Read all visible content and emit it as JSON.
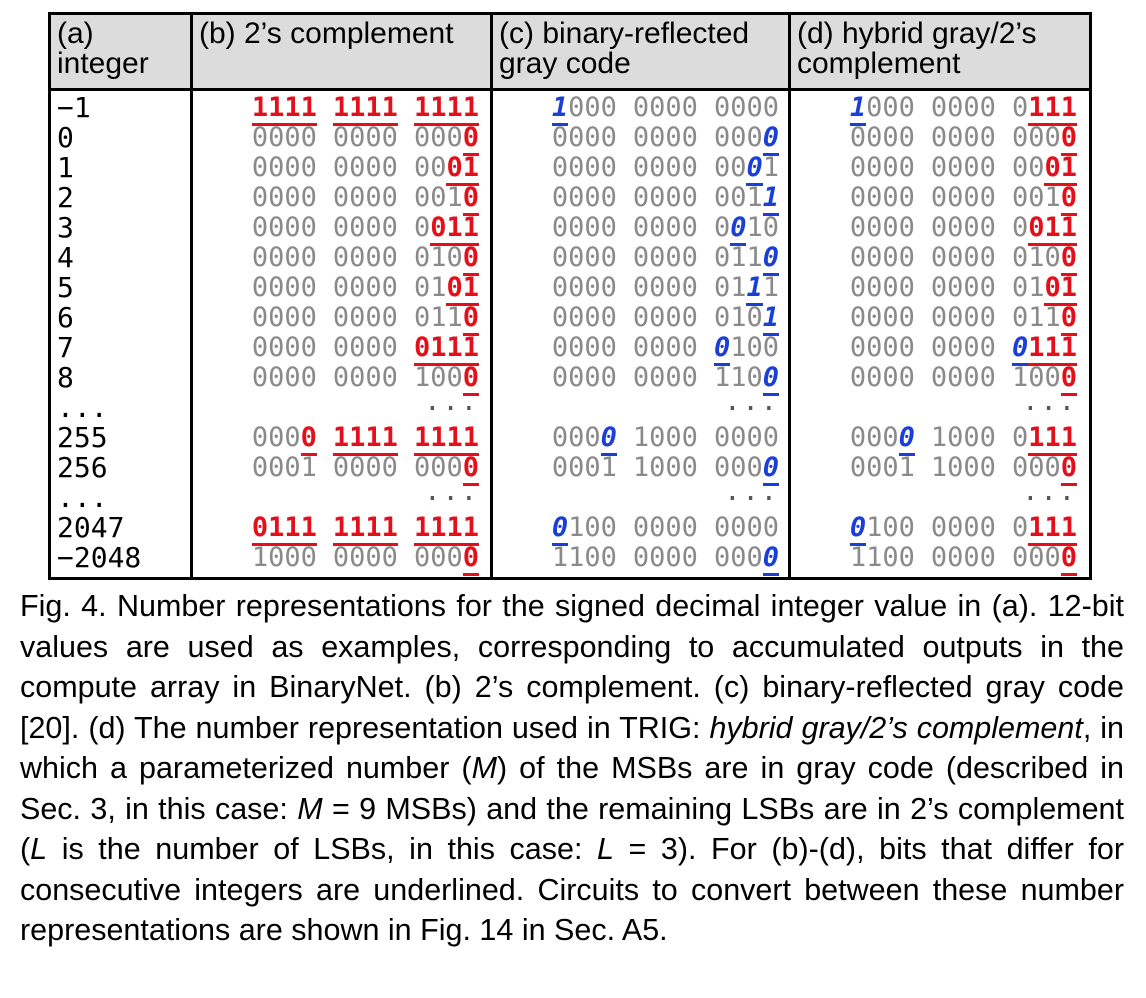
{
  "table": {
    "headers": [
      {
        "label": "(a)\ninteger"
      },
      {
        "label": "(b) 2’s complement"
      },
      {
        "label": "(c) binary-reflected\ngray code"
      },
      {
        "label": "(d) hybrid gray/2’s\ncomplement"
      }
    ],
    "rows": [
      {
        "int": "−1",
        "b": "1111 1111 1111",
        "b_mark": "111111111111",
        "c": "1000 0000 0000",
        "c_mark": "100000000000",
        "d": "1000 0000 0111",
        "d_mark": "100000000111"
      },
      {
        "int": "0",
        "b": "0000 0000 0000",
        "b_mark": "000000000001",
        "c": "0000 0000 0000",
        "c_mark": "000000000001",
        "d": "0000 0000 0000",
        "d_mark": "000000000001"
      },
      {
        "int": "1",
        "b": "0000 0000 0001",
        "b_mark": "000000000011",
        "c": "0000 0000 0001",
        "c_mark": "000000000010",
        "d": "0000 0000 0001",
        "d_mark": "000000000011"
      },
      {
        "int": "2",
        "b": "0000 0000 0010",
        "b_mark": "000000000001",
        "c": "0000 0000 0011",
        "c_mark": "000000000001",
        "d": "0000 0000 0010",
        "d_mark": "000000000001"
      },
      {
        "int": "3",
        "b": "0000 0000 0011",
        "b_mark": "000000000111",
        "c": "0000 0000 0010",
        "c_mark": "000000000100",
        "d": "0000 0000 0011",
        "d_mark": "000000000111"
      },
      {
        "int": "4",
        "b": "0000 0000 0100",
        "b_mark": "000000000001",
        "c": "0000 0000 0110",
        "c_mark": "000000000001",
        "d": "0000 0000 0100",
        "d_mark": "000000000001"
      },
      {
        "int": "5",
        "b": "0000 0000 0101",
        "b_mark": "000000000011",
        "c": "0000 0000 0111",
        "c_mark": "000000000010",
        "d": "0000 0000 0101",
        "d_mark": "000000000011"
      },
      {
        "int": "6",
        "b": "0000 0000 0110",
        "b_mark": "000000000001",
        "c": "0000 0000 0101",
        "c_mark": "000000000001",
        "d": "0000 0000 0110",
        "d_mark": "000000000001"
      },
      {
        "int": "7",
        "b": "0000 0000 0111",
        "b_mark": "000000001111",
        "c": "0000 0000 0100",
        "c_mark": "000000001000",
        "d": "0000 0000 0111",
        "d_mark": "000000001111"
      },
      {
        "int": "8",
        "b": "0000 0000 1000",
        "b_mark": "000000000001",
        "c": "0000 0000 1100",
        "c_mark": "000000000001",
        "d": "0000 0000 1000",
        "d_mark": "000000000001"
      },
      {
        "int": "...",
        "dots": true
      },
      {
        "int": "255",
        "b": "0000 1111 1111",
        "b_mark": "000111111111",
        "c": "0000 1000 0000",
        "c_mark": "000100000000",
        "d": "0000 1000 0111",
        "d_mark": "000100000111"
      },
      {
        "int": "256",
        "b": "0001 0000 0000",
        "b_mark": "000000000001",
        "c": "0001 1000 0000",
        "c_mark": "000000000001",
        "d": "0001 1000 0000",
        "d_mark": "000000000001"
      },
      {
        "int": "...",
        "dots": true
      },
      {
        "int": "2047",
        "b": "0111 1111 1111",
        "b_mark": "111111111111",
        "c": "0100 0000 0000",
        "c_mark": "100000000000",
        "d": "0100 0000 0111",
        "d_mark": "100000000111"
      },
      {
        "int": "−2048",
        "b": "1000 0000 0000",
        "b_mark": "000000000001",
        "c": "1100 0000 0000",
        "c_mark": "000000000001",
        "d": "1100 0000 0000",
        "d_mark": "000000000001"
      }
    ],
    "dots_text": "...",
    "colors": {
      "b": "#e3101b",
      "c": "#1a3fd6",
      "d_gray": "#1a3fd6",
      "d_twos": "#e3101b",
      "plain": "#8a8a8a"
    }
  },
  "caption": {
    "p1": "Fig. 4. Number representations for the signed decimal integer value in (a). 12-bit values are used as examples, corresponding to accumulated outputs in the compute array in BinaryNet. (b) 2’s complement. (c) binary-reflected gray code [20]. (d) The number representation used in TRIG: ",
    "em1": "hybrid gray/2’s complement",
    "p2": ", in which a parameterized number (",
    "em2": "M",
    "p3": ") of the MSBs are in gray code (described in Sec. 3, in this case: ",
    "em3": "M",
    "p4": " = 9 MSBs) and the remaining LSBs are in 2’s complement (",
    "em4": "L",
    "p5": " is the number of LSBs, in this case: ",
    "em5": "L",
    "p6": " = 3). For (b)-(d), bits that differ for consecutive integers are underlined. Circuits to convert between these number representations are shown in Fig. 14 in Sec. A5."
  }
}
